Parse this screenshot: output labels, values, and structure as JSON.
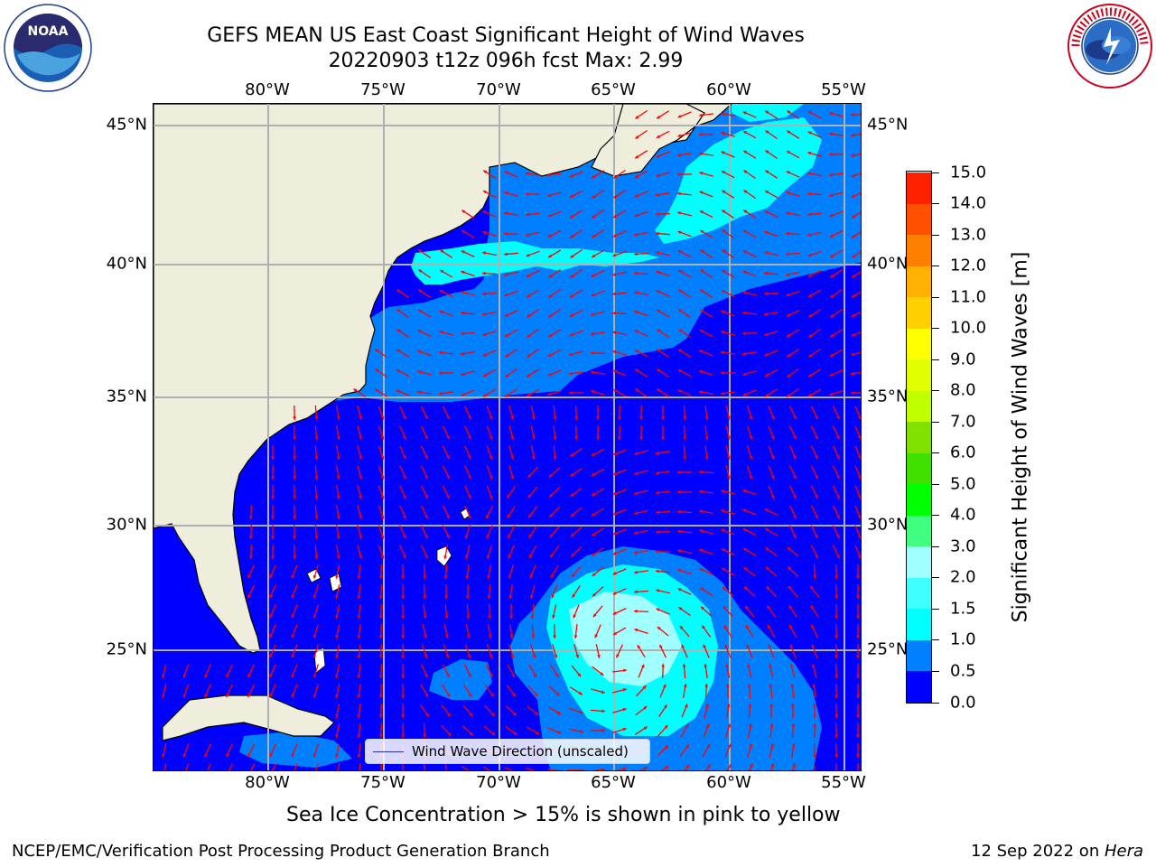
{
  "title": {
    "line1": "GEFS MEAN US East Coast Significant Height of Wind Waves",
    "line2": "20220903 t12z 096h fcst   Max: 2.99"
  },
  "logos": {
    "left": {
      "icon": "noaa-logo",
      "text": "NOAA"
    },
    "right": {
      "icon": "nws-logo",
      "text": "NATIONAL WEATHER SERVICE"
    }
  },
  "map": {
    "lon_labels": [
      "80°W",
      "75°W",
      "70°W",
      "65°W",
      "60°W",
      "55°W"
    ],
    "lat_labels": [
      "45°N",
      "40°N",
      "35°N",
      "30°N",
      "25°N"
    ],
    "colors": {
      "land": "#efeedd",
      "coastline": "#000000",
      "gridlines": "#b0b0b0",
      "arrows": "#ff0000"
    },
    "legend_label": "Wind Wave Direction (unscaled)"
  },
  "colorbar": {
    "title": "Significant Height of Wind Waves [m]",
    "levels": [
      "0.0",
      "0.5",
      "1.0",
      "1.5",
      "2.0",
      "3.0",
      "4.0",
      "5.0",
      "6.0",
      "7.0",
      "8.0",
      "9.0",
      "10.0",
      "11.0",
      "12.0",
      "13.0",
      "14.0",
      "15.0"
    ],
    "colors": [
      "#0000ff",
      "#0080ff",
      "#00ffff",
      "#40ffff",
      "#a0ffff",
      "#40ff80",
      "#00ff00",
      "#40e000",
      "#80e000",
      "#c0ff00",
      "#e0ff00",
      "#ffff00",
      "#ffd000",
      "#ffb000",
      "#ff8000",
      "#ff5000",
      "#ff2000"
    ]
  },
  "footnote": "Sea Ice Concentration > 15% is shown in pink to yellow",
  "footer": {
    "branch": "NCEP/EMC/Verification Post Processing Product Generation Branch",
    "date_prefix": "12 Sep 2022 on ",
    "date_machine": "Hera"
  }
}
